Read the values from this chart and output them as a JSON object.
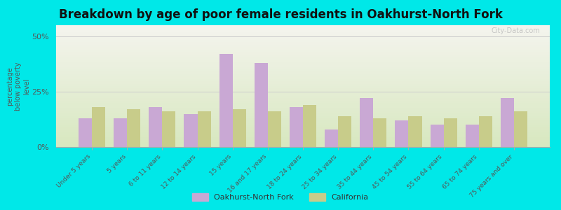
{
  "title": "Breakdown by age of poor female residents in Oakhurst-North Fork",
  "ylabel": "percentage\nbelow poverty\nlevel",
  "categories": [
    "Under 5 years",
    "5 years",
    "6 to 11 years",
    "12 to 14 years",
    "15 years",
    "16 and 17 years",
    "18 to 24 years",
    "25 to 34 years",
    "35 to 44 years",
    "45 to 54 years",
    "55 to 64 years",
    "65 to 74 years",
    "75 years and over"
  ],
  "oakhurst_values": [
    13,
    13,
    18,
    15,
    42,
    38,
    18,
    8,
    22,
    12,
    10,
    10,
    22
  ],
  "california_values": [
    18,
    17,
    16,
    16,
    17,
    16,
    19,
    14,
    13,
    14,
    13,
    14,
    16
  ],
  "oakhurst_color": "#c9a8d4",
  "california_color": "#c8cc8a",
  "bg_top": "#f5f5ef",
  "bg_bottom": "#d8e8c0",
  "outer_bg": "#00e8e8",
  "ylim": [
    0,
    55
  ],
  "yticks": [
    0,
    25,
    50
  ],
  "ytick_labels": [
    "0%",
    "25%",
    "50%"
  ],
  "legend_oakhurst": "Oakhurst-North Fork",
  "legend_california": "California",
  "title_fontsize": 12,
  "bar_width": 0.38,
  "watermark": "City-Data.com"
}
